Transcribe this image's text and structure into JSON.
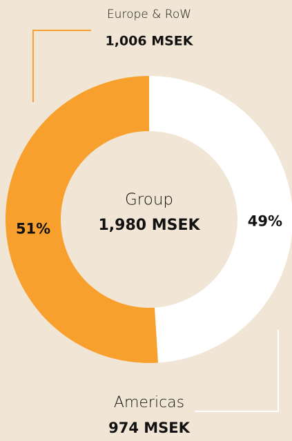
{
  "chart_data": {
    "type": "pie",
    "donut": true,
    "categories": [
      "Europe & RoW",
      "Americas"
    ],
    "values": [
      51,
      49
    ],
    "value_labels": [
      "51%",
      "49%"
    ],
    "colors": [
      "#f8a02e",
      "#ffffff"
    ],
    "amount_labels": [
      "1,006 MSEK",
      "974 MSEK"
    ],
    "center_label": "Group",
    "center_value": "1,980 MSEK"
  }
}
